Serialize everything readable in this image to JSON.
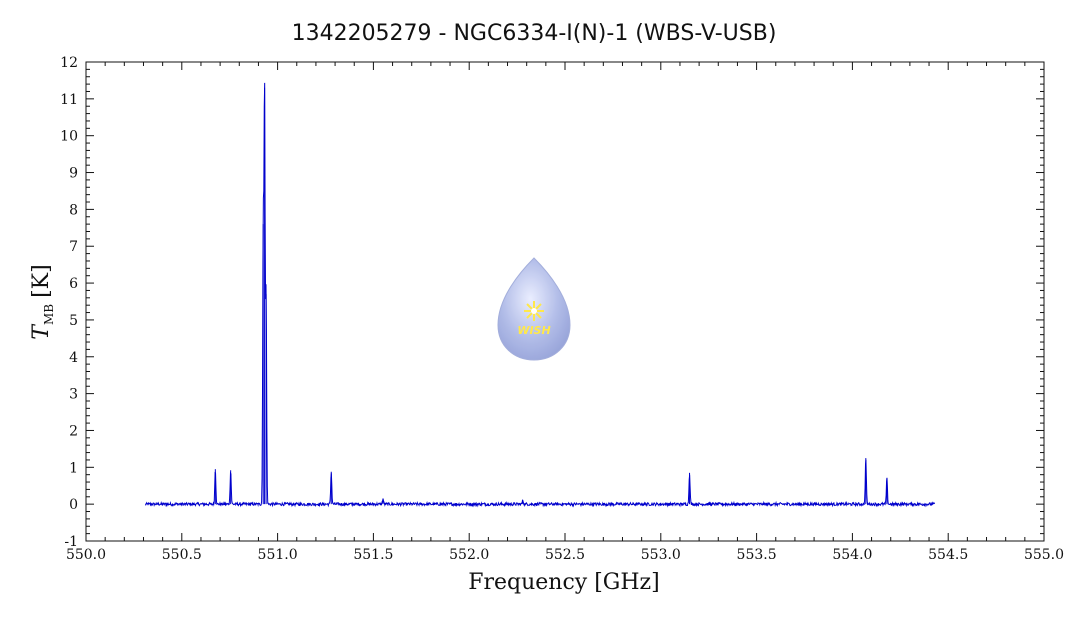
{
  "chart_data": {
    "type": "line",
    "title": "1342205279 - NGC6334-I(N)-1 (WBS-V-USB)",
    "xlabel": "Frequency [GHz]",
    "ylabel": "T",
    "ylabel_sub": "MB",
    "ylabel_unit": "[K]",
    "xlim": [
      550.0,
      555.0
    ],
    "ylim": [
      -1,
      12
    ],
    "grid": false,
    "x_ticks": [
      "550.0",
      "550.5",
      "551.0",
      "551.5",
      "552.0",
      "552.5",
      "553.0",
      "553.5",
      "554.0",
      "554.5",
      "555.0"
    ],
    "y_ticks": [
      "-1",
      "0",
      "1",
      "2",
      "3",
      "4",
      "5",
      "6",
      "7",
      "8",
      "9",
      "10",
      "11",
      "12"
    ],
    "series": [
      {
        "color": "#0000cc",
        "x_range": [
          550.31,
          554.43
        ],
        "baseline": 0.0,
        "peaks": [
          {
            "x": 550.675,
            "y": 0.95
          },
          {
            "x": 550.755,
            "y": 0.92
          },
          {
            "x": 550.925,
            "y": 7.6
          },
          {
            "x": 550.932,
            "y": 11.3
          },
          {
            "x": 550.94,
            "y": 5.7
          },
          {
            "x": 551.28,
            "y": 0.88
          },
          {
            "x": 551.55,
            "y": 0.15
          },
          {
            "x": 552.28,
            "y": 0.1
          },
          {
            "x": 553.15,
            "y": 0.85
          },
          {
            "x": 554.07,
            "y": 1.25
          },
          {
            "x": 554.18,
            "y": 0.7
          }
        ]
      }
    ],
    "logo_text": "WISH"
  }
}
